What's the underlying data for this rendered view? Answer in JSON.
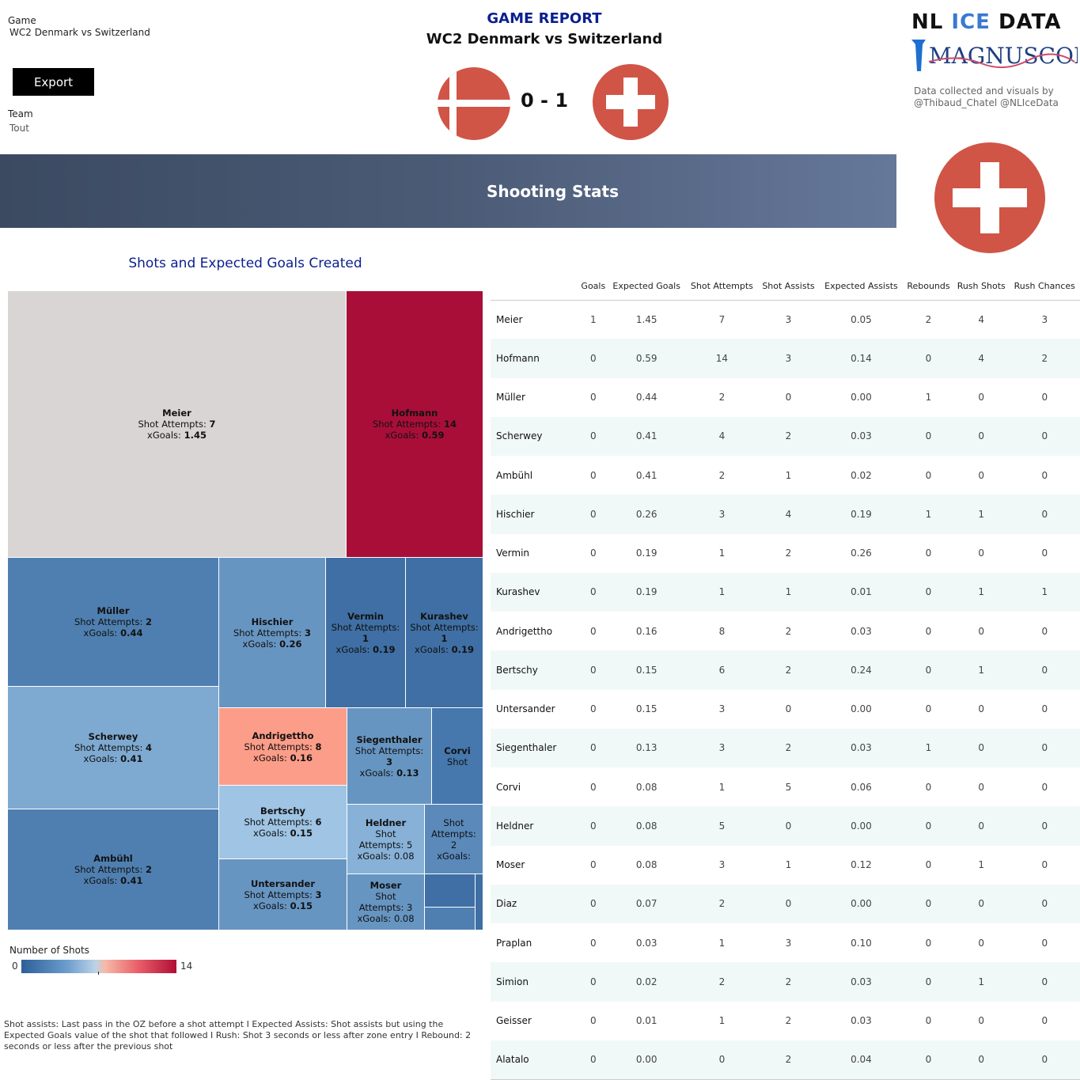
{
  "filters": {
    "game_label": "Game",
    "game_value": "WC2 Denmark vs Switzerland",
    "team_label": "Team",
    "team_value": "Tout",
    "export_label": "Export"
  },
  "header": {
    "title": "GAME REPORT",
    "subtitle": "WC2 Denmark vs Switzerland",
    "score": "0 - 1",
    "home_flag": "denmark-flag-icon",
    "away_flag": "switzerland-flag-icon"
  },
  "brand": {
    "line1_a": "NL ",
    "line1_b": "ICE",
    "line1_c": " DATA",
    "line2": "MAGNUSCORSI",
    "credit": "Data collected and visuals by @Thibaud_Chatel @NLIceData"
  },
  "banner": {
    "title": "Shooting Stats",
    "team_logo": "switzerland-flag-icon"
  },
  "colors": {
    "low": "#2c5f99",
    "high": "#b10d35",
    "flag_red": "#d05546",
    "title_blue": "#0a1f8f"
  },
  "treemap": {
    "title": "Shots and Expected Goals Created",
    "attempts_label": "Shot Attempts: ",
    "xgoals_label": "xGoals: ",
    "tiles": [
      {
        "name": "Meier",
        "attempts": "7",
        "xg": "1.45",
        "color": "#d9d5d4"
      },
      {
        "name": "Hofmann",
        "attempts": "14",
        "xg": "0.59",
        "color": "#a90e38"
      },
      {
        "name": "Müller",
        "attempts": "2",
        "xg": "0.44",
        "color": "#4f7fb0"
      },
      {
        "name": "Hischier",
        "attempts": "3",
        "xg": "0.26",
        "color": "#6795c2"
      },
      {
        "name": "Vermin",
        "attempts": "1",
        "xg": "0.19",
        "color": "#3f6fa4"
      },
      {
        "name": "Kurashev",
        "attempts": "1",
        "xg": "0.19",
        "color": "#3f6fa4"
      },
      {
        "name": "Scherwey",
        "attempts": "4",
        "xg": "0.41",
        "color": "#7eaad1"
      },
      {
        "name": "Andrigettho",
        "attempts": "8",
        "xg": "0.16",
        "color": "#fc9d89"
      },
      {
        "name": "Siegenthaler",
        "attempts": "3",
        "xg": "0.13",
        "color": "#6795c2"
      },
      {
        "name": "Corvi",
        "attempts": "",
        "xg": "",
        "partial": "Shot",
        "color": "#4677ad"
      },
      {
        "name": "Bertschy",
        "attempts": "6",
        "xg": "0.15",
        "color": "#9fc4e4"
      },
      {
        "name": "Heldner",
        "attempts": "5",
        "xg": "0.08",
        "partial": "Shot\nAttempts: 5\nxGoals: 0.08",
        "color": "#87b1d7"
      },
      {
        "name": "",
        "attempts": "",
        "xg": "",
        "partial": "Shot\nAttempts:\n2\nxGoals:",
        "color": "#5a89ba"
      },
      {
        "name": "Ambühl",
        "attempts": "2",
        "xg": "0.41",
        "color": "#4f7fb0"
      },
      {
        "name": "Untersander",
        "attempts": "3",
        "xg": "0.15",
        "color": "#6795c2"
      },
      {
        "name": "Moser",
        "attempts": "3",
        "xg": "0.08",
        "partial": "Shot\nAttempts: 3\nxGoals: 0.08",
        "color": "#6795c2"
      },
      {
        "name": "",
        "attempts": "",
        "xg": "",
        "color": "#3f6fa4"
      },
      {
        "name": "",
        "attempts": "",
        "xg": "",
        "color": "#4f7fb0"
      },
      {
        "name": "",
        "attempts": "",
        "xg": "",
        "color": "#3f6fa4"
      }
    ]
  },
  "legend": {
    "label": "Number of Shots",
    "min": "0",
    "max": "14"
  },
  "footnote": "Shot assists: Last pass in the OZ before a shot attempt I Expected Assists: Shot assists but using the Expected Goals value of the shot that followed I Rush: Shot 3 seconds or less after zone entry I Rebound: 2 seconds or less after the previous shot",
  "table": {
    "columns": [
      "",
      "Goals",
      "Expected Goals",
      "Shot Attempts",
      "Shot Assists",
      "Expected Assists",
      "Rebounds",
      "Rush Shots",
      "Rush Chances"
    ],
    "rows": [
      [
        "Meier",
        "1",
        "1.45",
        "7",
        "3",
        "0.05",
        "2",
        "4",
        "3"
      ],
      [
        "Hofmann",
        "0",
        "0.59",
        "14",
        "3",
        "0.14",
        "0",
        "4",
        "2"
      ],
      [
        "Müller",
        "0",
        "0.44",
        "2",
        "0",
        "0.00",
        "1",
        "0",
        "0"
      ],
      [
        "Scherwey",
        "0",
        "0.41",
        "4",
        "2",
        "0.03",
        "0",
        "0",
        "0"
      ],
      [
        "Ambühl",
        "0",
        "0.41",
        "2",
        "1",
        "0.02",
        "0",
        "0",
        "0"
      ],
      [
        "Hischier",
        "0",
        "0.26",
        "3",
        "4",
        "0.19",
        "1",
        "1",
        "0"
      ],
      [
        "Vermin",
        "0",
        "0.19",
        "1",
        "2",
        "0.26",
        "0",
        "0",
        "0"
      ],
      [
        "Kurashev",
        "0",
        "0.19",
        "1",
        "1",
        "0.01",
        "0",
        "1",
        "1"
      ],
      [
        "Andrigettho",
        "0",
        "0.16",
        "8",
        "2",
        "0.03",
        "0",
        "0",
        "0"
      ],
      [
        "Bertschy",
        "0",
        "0.15",
        "6",
        "2",
        "0.24",
        "0",
        "1",
        "0"
      ],
      [
        "Untersander",
        "0",
        "0.15",
        "3",
        "0",
        "0.00",
        "0",
        "0",
        "0"
      ],
      [
        "Siegenthaler",
        "0",
        "0.13",
        "3",
        "2",
        "0.03",
        "1",
        "0",
        "0"
      ],
      [
        "Corvi",
        "0",
        "0.08",
        "1",
        "5",
        "0.06",
        "0",
        "0",
        "0"
      ],
      [
        "Heldner",
        "0",
        "0.08",
        "5",
        "0",
        "0.00",
        "0",
        "0",
        "0"
      ],
      [
        "Moser",
        "0",
        "0.08",
        "3",
        "1",
        "0.12",
        "0",
        "1",
        "0"
      ],
      [
        "Diaz",
        "0",
        "0.07",
        "2",
        "0",
        "0.00",
        "0",
        "0",
        "0"
      ],
      [
        "Praplan",
        "0",
        "0.03",
        "1",
        "3",
        "0.10",
        "0",
        "0",
        "0"
      ],
      [
        "Simion",
        "0",
        "0.02",
        "2",
        "2",
        "0.03",
        "0",
        "1",
        "0"
      ],
      [
        "Geisser",
        "0",
        "0.01",
        "1",
        "2",
        "0.03",
        "0",
        "0",
        "0"
      ],
      [
        "Alatalo",
        "0",
        "0.00",
        "0",
        "2",
        "0.04",
        "0",
        "0",
        "0"
      ]
    ]
  }
}
